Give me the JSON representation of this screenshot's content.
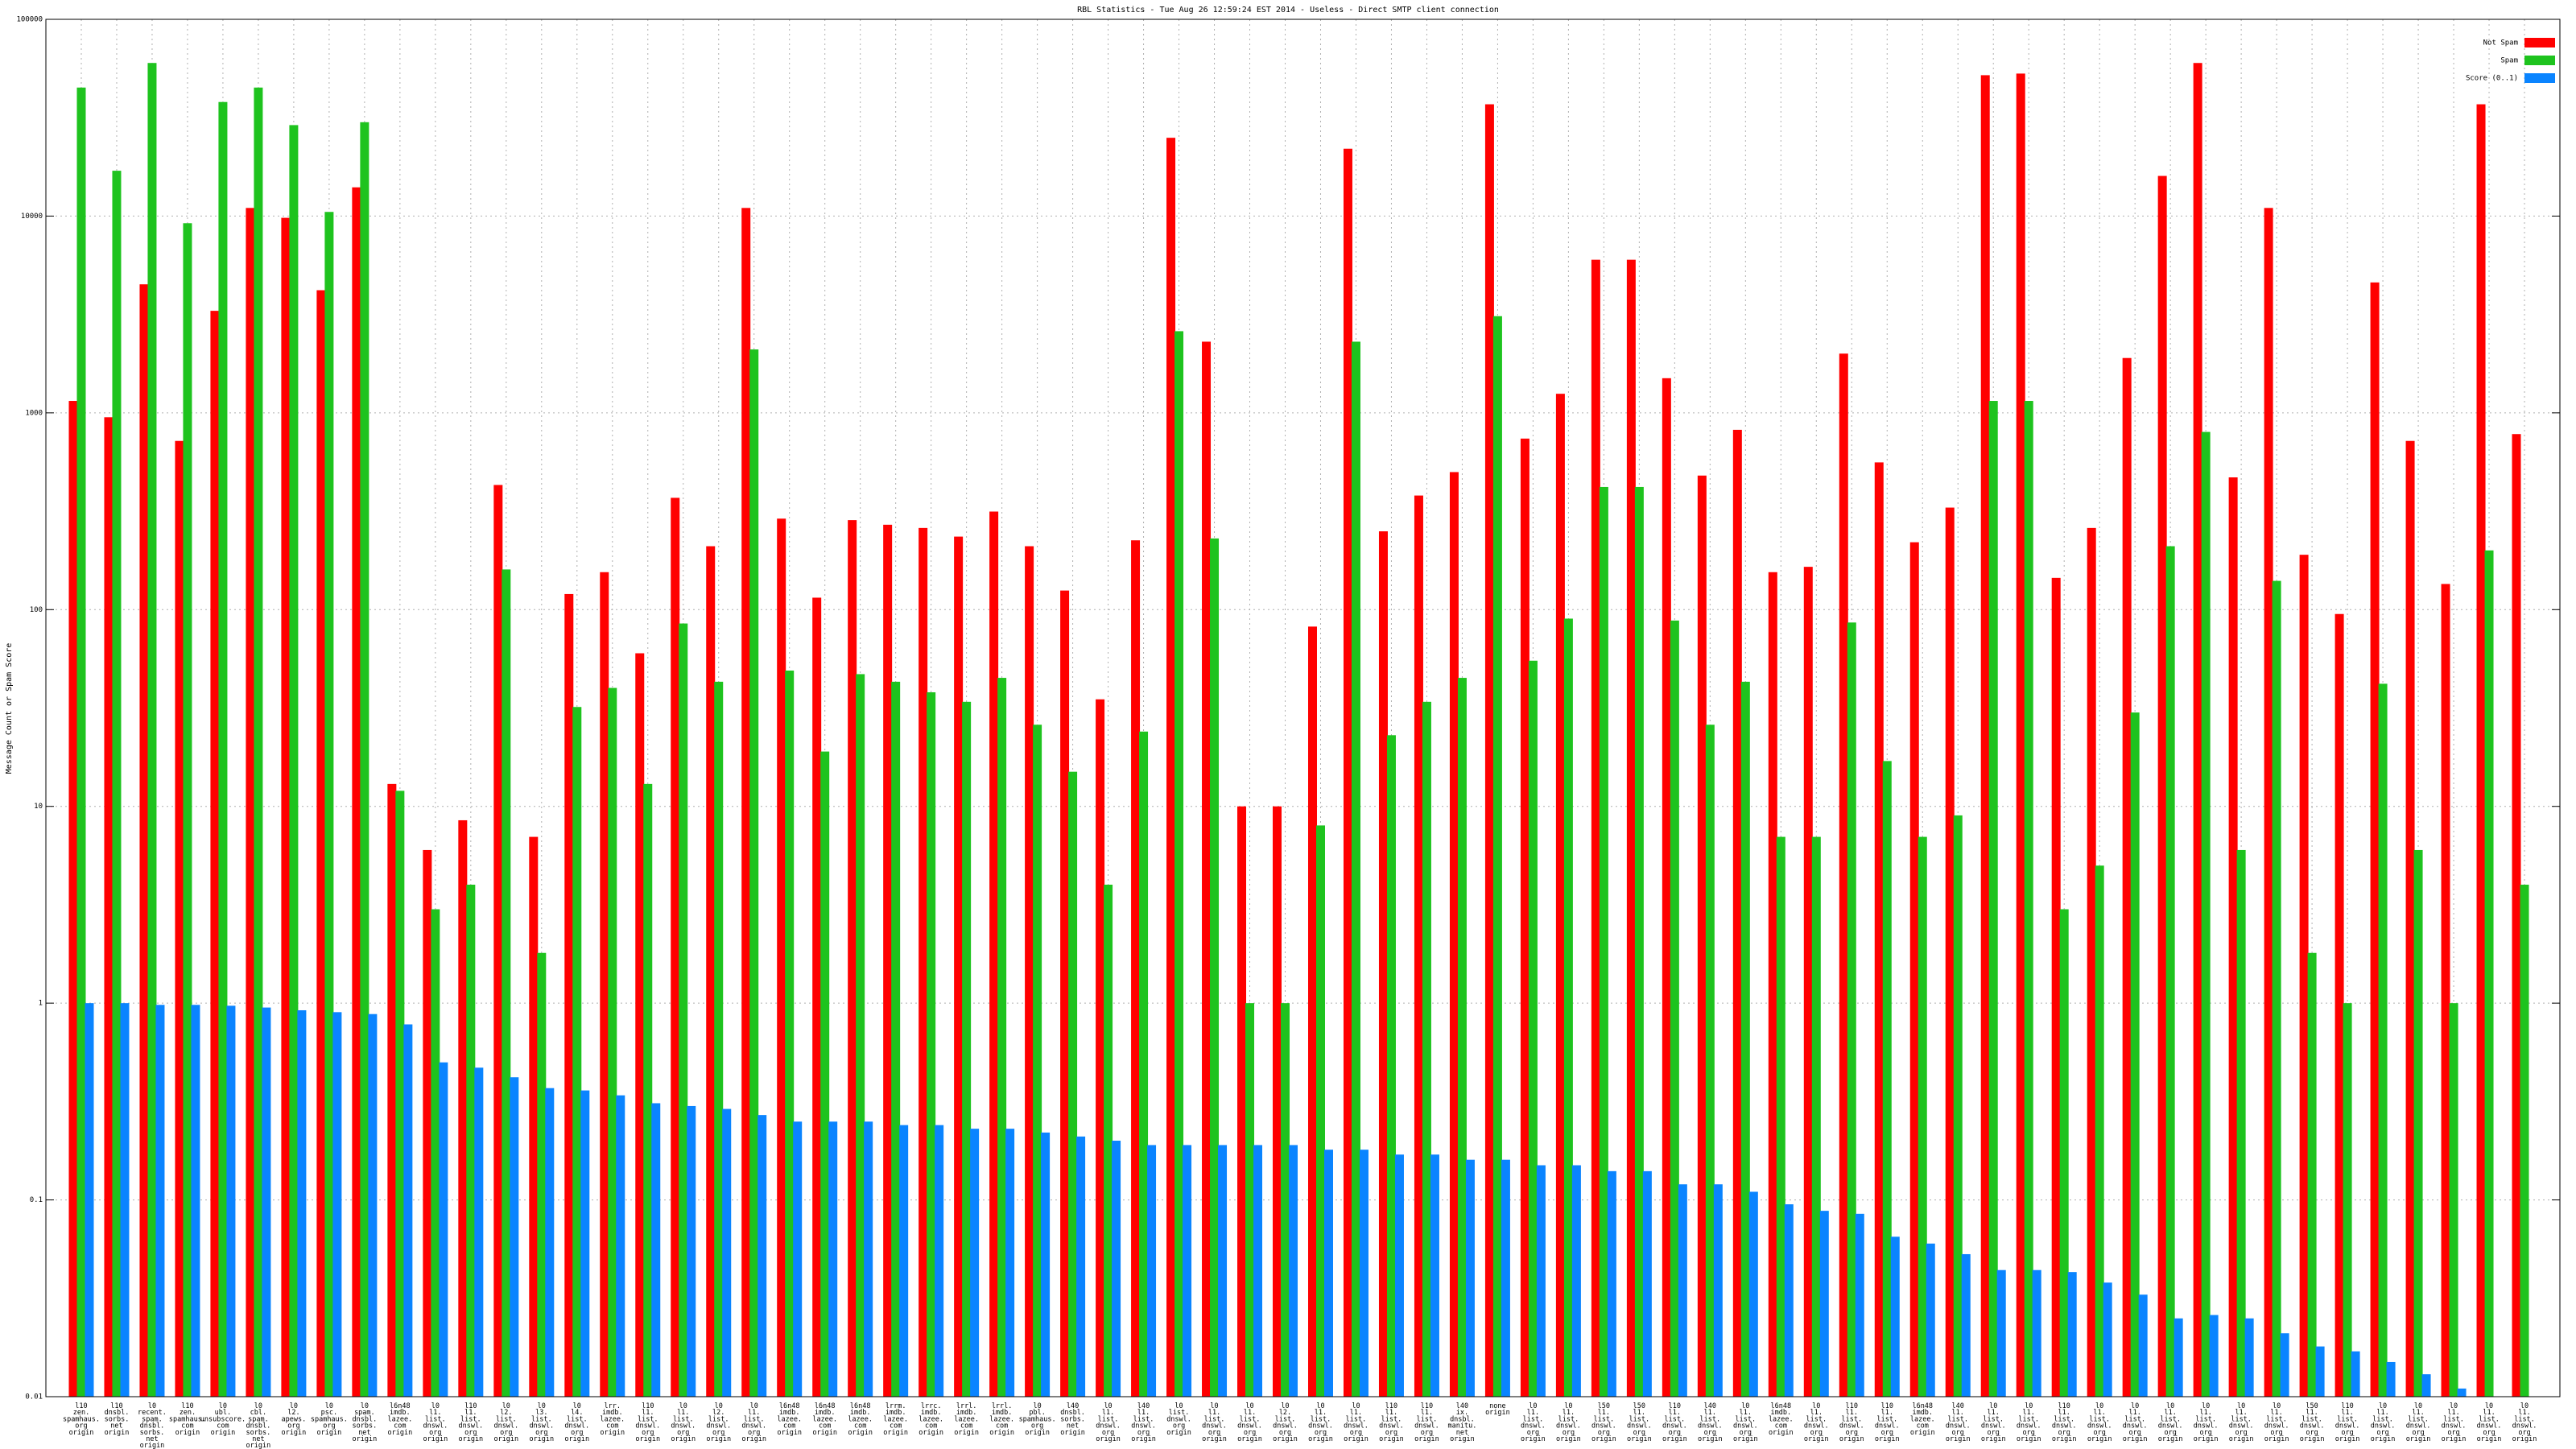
{
  "chart_data": {
    "type": "bar",
    "title": "RBL Statistics - Tue Aug 26 12:59:24 EST 2014 - Useless - Direct SMTP client connection",
    "y_label": "Message Count or Spam Score",
    "log_scale": true,
    "grid": true,
    "legend": "upper right",
    "ylim": [
      0.01,
      100000
    ],
    "yticks": [
      0.01,
      0.1,
      1,
      10,
      100,
      1000,
      10000,
      100000
    ],
    "categories": [
      [
        "l10",
        "zen.",
        "spamhaus.",
        "org",
        "origin"
      ],
      [
        "l10",
        "dnsbl.",
        "sorbs.",
        "net",
        "origin"
      ],
      [
        "l0",
        "recent.",
        "spam.",
        "dnsbl.",
        "sorbs.",
        "net",
        "origin"
      ],
      [
        "l10",
        "zen.",
        "spamhaus.",
        "com",
        "origin"
      ],
      [
        "l0",
        "ubl.",
        "unsubscore.",
        "com",
        "origin"
      ],
      [
        "l0",
        "cbl.",
        "spam.",
        "dnsbl.",
        "sorbs.",
        "net",
        "origin"
      ],
      [
        "l0",
        "l2.",
        "apews.",
        "org",
        "origin"
      ],
      [
        "l0",
        "psc.",
        "spamhaus.",
        "org",
        "origin"
      ],
      [
        "l0",
        "spam.",
        "dnsbl.",
        "sorbs.",
        "net",
        "origin"
      ],
      [
        "l6n48",
        "imdb.",
        "lazee.",
        "com",
        "origin"
      ],
      [
        "l0",
        "l1.",
        "list.",
        "dnswl.",
        "org",
        "origin"
      ],
      [
        "l10",
        "l1.",
        "list.",
        "dnswl.",
        "org",
        "origin"
      ],
      [
        "l0",
        "l2.",
        "list.",
        "dnswl.",
        "org",
        "origin"
      ],
      [
        "l0",
        "l3.",
        "list.",
        "dnswl.",
        "org",
        "origin"
      ],
      [
        "l0",
        "l4.",
        "list.",
        "dnswl.",
        "org",
        "origin"
      ],
      [
        "lrr.",
        "imdb.",
        "lazee.",
        "com",
        "origin"
      ],
      [
        "l10",
        "l1.",
        "list.",
        "dnswl.",
        "org",
        "origin"
      ],
      [
        "l0",
        "l1.",
        "list.",
        "dnswl.",
        "org",
        "origin"
      ],
      [
        "l0",
        "l2.",
        "list.",
        "dnswl.",
        "org",
        "origin"
      ],
      [
        "l0",
        "l1.",
        "list.",
        "dnswl.",
        "org",
        "origin"
      ],
      [
        "l6n48",
        "imdb.",
        "lazee.",
        "com",
        "origin"
      ],
      [
        "l6n48",
        "imdb.",
        "lazee.",
        "com",
        "origin"
      ],
      [
        "l6n48",
        "imdb.",
        "lazee.",
        "com",
        "origin"
      ],
      [
        "lrrm.",
        "imdb.",
        "lazee.",
        "com",
        "origin"
      ],
      [
        "lrrc.",
        "imdb.",
        "lazee.",
        "com",
        "origin"
      ],
      [
        "lrrl.",
        "imdb.",
        "lazee.",
        "com",
        "origin"
      ],
      [
        "lrrl.",
        "imdb.",
        "lazee.",
        "com",
        "origin"
      ],
      [
        "l0",
        "pbl.",
        "spamhaus.",
        "org",
        "origin"
      ],
      [
        "l40",
        "dnsbl.",
        "sorbs.",
        "net",
        "origin"
      ],
      [
        "l0",
        "l1.",
        "list.",
        "dnswl.",
        "org",
        "origin"
      ],
      [
        "l40",
        "l1.",
        "list.",
        "dnswl.",
        "org",
        "origin"
      ],
      [
        "l0",
        "list.",
        "dnswl.",
        "org",
        "origin"
      ],
      [
        "l0",
        "l1.",
        "list.",
        "dnswl.",
        "org",
        "origin"
      ],
      [
        "l0",
        "l1.",
        "list.",
        "dnswl.",
        "org",
        "origin"
      ],
      [
        "l0",
        "l2.",
        "list.",
        "dnswl.",
        "org",
        "origin"
      ],
      [
        "l0",
        "l1.",
        "list.",
        "dnswl.",
        "org",
        "origin"
      ],
      [
        "l0",
        "l1.",
        "list.",
        "dnswl.",
        "org",
        "origin"
      ],
      [
        "l10",
        "l1.",
        "list.",
        "dnswl.",
        "org",
        "origin"
      ],
      [
        "l10",
        "l1.",
        "list.",
        "dnswl.",
        "org",
        "origin"
      ],
      [
        "l40",
        "ix.",
        "dnsbl.",
        "manitu.",
        "net",
        "origin"
      ],
      [
        "none",
        "origin"
      ],
      [
        "l0",
        "l1.",
        "list.",
        "dnswl.",
        "org",
        "origin"
      ],
      [
        "l0",
        "l1.",
        "list.",
        "dnswl.",
        "org",
        "origin"
      ],
      [
        "l50",
        "l1.",
        "list.",
        "dnswl.",
        "org",
        "origin"
      ],
      [
        "l50",
        "l1.",
        "list.",
        "dnswl.",
        "org",
        "origin"
      ],
      [
        "l10",
        "l1.",
        "list.",
        "dnswl.",
        "org",
        "origin"
      ],
      [
        "l40",
        "l1.",
        "list.",
        "dnswl.",
        "org",
        "origin"
      ],
      [
        "l0",
        "l1.",
        "list.",
        "dnswl.",
        "org",
        "origin"
      ],
      [
        "l6n48",
        "imdb.",
        "lazee.",
        "com",
        "origin"
      ],
      [
        "l0",
        "l1.",
        "list.",
        "dnswl.",
        "org",
        "origin"
      ],
      [
        "l10",
        "l1.",
        "list.",
        "dnswl.",
        "org",
        "origin"
      ],
      [
        "l10",
        "l1.",
        "list.",
        "dnswl.",
        "org",
        "origin"
      ],
      [
        "l6n48",
        "imdb.",
        "lazee.",
        "com",
        "origin"
      ],
      [
        "l40",
        "l1.",
        "list.",
        "dnswl.",
        "org",
        "origin"
      ],
      [
        "l0",
        "l1.",
        "list.",
        "dnswl.",
        "org",
        "origin"
      ],
      [
        "l0",
        "l1.",
        "list.",
        "dnswl.",
        "org",
        "origin"
      ],
      [
        "l10",
        "l1.",
        "list.",
        "dnswl.",
        "org",
        "origin"
      ],
      [
        "l0",
        "l1.",
        "list.",
        "dnswl.",
        "org",
        "origin"
      ],
      [
        "l0",
        "l1.",
        "list.",
        "dnswl.",
        "org",
        "origin"
      ],
      [
        "l0",
        "l1.",
        "list.",
        "dnswl.",
        "org",
        "origin"
      ],
      [
        "l0",
        "l1.",
        "list.",
        "dnswl.",
        "org",
        "origin"
      ],
      [
        "l0",
        "l1.",
        "list.",
        "dnswl.",
        "org",
        "origin"
      ],
      [
        "l0",
        "l1.",
        "list.",
        "dnswl.",
        "org",
        "origin"
      ],
      [
        "l50",
        "l1.",
        "list.",
        "dnswl.",
        "org",
        "origin"
      ],
      [
        "l10",
        "l1.",
        "list.",
        "dnswl.",
        "org",
        "origin"
      ],
      [
        "l0",
        "l1.",
        "list.",
        "dnswl.",
        "org",
        "origin"
      ],
      [
        "l0",
        "l1.",
        "list.",
        "dnswl.",
        "org",
        "origin"
      ],
      [
        "l0",
        "l1.",
        "list.",
        "dnswl.",
        "org",
        "origin"
      ],
      [
        "l0",
        "l1.",
        "list.",
        "dnswl.",
        "org",
        "origin"
      ],
      [
        "l0",
        "l1.",
        "list.",
        "dnswl.",
        "org",
        "origin"
      ]
    ],
    "series": [
      {
        "name": "Not Spam",
        "color": "#ff0000",
        "values": [
          1150,
          950,
          4500,
          720,
          3300,
          11000,
          9800,
          4200,
          14000,
          13,
          6,
          8.5,
          430,
          7,
          120,
          155,
          60,
          370,
          210,
          11000,
          290,
          115,
          285,
          270,
          260,
          235,
          315,
          210,
          125,
          35,
          225,
          25000,
          2300,
          10,
          10,
          82,
          22000,
          250,
          380,
          500,
          37000,
          740,
          1250,
          6000,
          6000,
          1500,
          480,
          820,
          155,
          165,
          2000,
          560,
          220,
          330,
          52000,
          53000,
          145,
          260,
          1900,
          16000,
          60000,
          470,
          11000,
          190,
          95,
          4600,
          720,
          135,
          37000,
          780
        ]
      },
      {
        "name": "Spam",
        "color": "#1ec31e",
        "values": [
          45000,
          17000,
          60000,
          9200,
          38000,
          45000,
          29000,
          10500,
          30000,
          12,
          3,
          4,
          160,
          1.8,
          32,
          40,
          13,
          85,
          43,
          2100,
          49,
          19,
          47,
          43,
          38,
          34,
          45,
          26,
          15,
          4,
          24,
          2600,
          230,
          1,
          1,
          8,
          2300,
          23,
          34,
          45,
          3100,
          55,
          90,
          420,
          420,
          88,
          26,
          43,
          7,
          7,
          86,
          17,
          7,
          9,
          1150,
          1150,
          3,
          5,
          30,
          210,
          800,
          6,
          140,
          1.8,
          1,
          42,
          6,
          1,
          200,
          4
        ]
      },
      {
        "name": "Score (0..1)",
        "color": "#0a84ff",
        "values": [
          1,
          1,
          0.98,
          0.98,
          0.97,
          0.95,
          0.92,
          0.9,
          0.88,
          0.78,
          0.5,
          0.47,
          0.42,
          0.37,
          0.36,
          0.34,
          0.31,
          0.3,
          0.29,
          0.27,
          0.25,
          0.25,
          0.25,
          0.24,
          0.24,
          0.23,
          0.23,
          0.22,
          0.21,
          0.2,
          0.19,
          0.19,
          0.19,
          0.19,
          0.19,
          0.18,
          0.18,
          0.17,
          0.17,
          0.16,
          0.16,
          0.15,
          0.15,
          0.14,
          0.14,
          0.12,
          0.12,
          0.11,
          0.095,
          0.088,
          0.085,
          0.065,
          0.06,
          0.053,
          0.044,
          0.044,
          0.043,
          0.038,
          0.033,
          0.025,
          0.026,
          0.025,
          0.021,
          0.018,
          0.017,
          0.015,
          0.013,
          0.011,
          null,
          null
        ]
      }
    ]
  }
}
